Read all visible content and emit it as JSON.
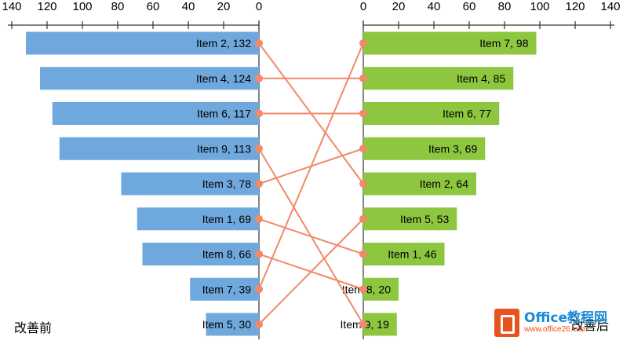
{
  "chart_data": {
    "type": "bar",
    "description_left": "改善前",
    "description_right": "改善后",
    "left_axis_ticks": [
      140,
      120,
      100,
      80,
      60,
      40,
      20,
      0
    ],
    "right_axis_ticks": [
      0,
      20,
      40,
      60,
      80,
      100,
      120,
      140
    ],
    "xlim": [
      0,
      140
    ],
    "before": [
      {
        "item": "Item 2",
        "value": 132,
        "label": "Item 2, 132"
      },
      {
        "item": "Item 4",
        "value": 124,
        "label": "Item 4, 124"
      },
      {
        "item": "Item 6",
        "value": 117,
        "label": "Item 6, 117"
      },
      {
        "item": "Item 9",
        "value": 113,
        "label": "Item 9, 113"
      },
      {
        "item": "Item 3",
        "value": 78,
        "label": "Item 3, 78"
      },
      {
        "item": "Item 1",
        "value": 69,
        "label": "Item 1, 69"
      },
      {
        "item": "Item 8",
        "value": 66,
        "label": "Item 8, 66"
      },
      {
        "item": "Item 7",
        "value": 39,
        "label": "Item 7, 39"
      },
      {
        "item": "Item 5",
        "value": 30,
        "label": "Item 5, 30"
      }
    ],
    "after": [
      {
        "item": "Item 7",
        "value": 98,
        "label": "Item 7, 98"
      },
      {
        "item": "Item 4",
        "value": 85,
        "label": "Item 4, 85"
      },
      {
        "item": "Item 6",
        "value": 77,
        "label": "Item 6, 77"
      },
      {
        "item": "Item 3",
        "value": 69,
        "label": "Item 3, 69"
      },
      {
        "item": "Item 2",
        "value": 64,
        "label": "Item 2, 64"
      },
      {
        "item": "Item 5",
        "value": 53,
        "label": "Item 5, 53"
      },
      {
        "item": "Item 1",
        "value": 46,
        "label": "Item 1, 46"
      },
      {
        "item": "Item 8",
        "value": 20,
        "label": "Item 8, 20"
      },
      {
        "item": "Item 9",
        "value": 19,
        "label": "Item 9, 19"
      }
    ],
    "colors": {
      "before_bar": "#6fa8dc",
      "after_bar": "#8dc63f",
      "connector": "#f08a6a",
      "marker": "#f08a6a"
    }
  },
  "labels": {
    "before": "改善前",
    "after": "改善后"
  },
  "watermark": {
    "main": "Office教程网",
    "url": "www.office26.com"
  }
}
